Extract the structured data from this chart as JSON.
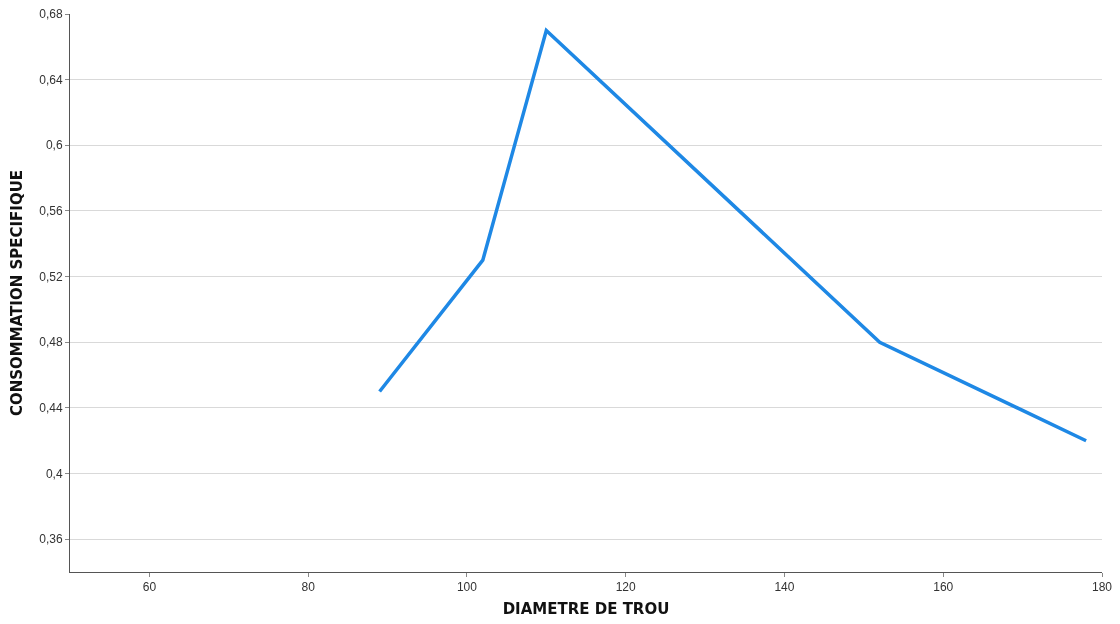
{
  "chart_data": {
    "type": "line",
    "xlabel": "DIAMETRE DE TROU",
    "ylabel": "CONSOMMATION SPECIFIQUE",
    "x": [
      89,
      102,
      110,
      152,
      178
    ],
    "series": [
      {
        "color": "#1e88e5",
        "values": [
          0.45,
          0.53,
          0.67,
          0.48,
          0.42
        ]
      }
    ],
    "xlim": [
      50,
      180
    ],
    "xticks": [
      60,
      80,
      100,
      120,
      140,
      160,
      180
    ],
    "ylim": [
      0.34,
      0.68
    ],
    "yticks": [
      {
        "value": 0.36,
        "label": "0,36"
      },
      {
        "value": 0.4,
        "label": "0,4"
      },
      {
        "value": 0.44,
        "label": "0,44"
      },
      {
        "value": 0.48,
        "label": "0,48"
      },
      {
        "value": 0.52,
        "label": "0,52"
      },
      {
        "value": 0.56,
        "label": "0,56"
      },
      {
        "value": 0.6,
        "label": "0,6"
      },
      {
        "value": 0.64,
        "label": "0,64"
      },
      {
        "value": 0.68,
        "label": "0,68"
      }
    ],
    "grid": "y",
    "marker": "none",
    "line_style": "solid"
  }
}
